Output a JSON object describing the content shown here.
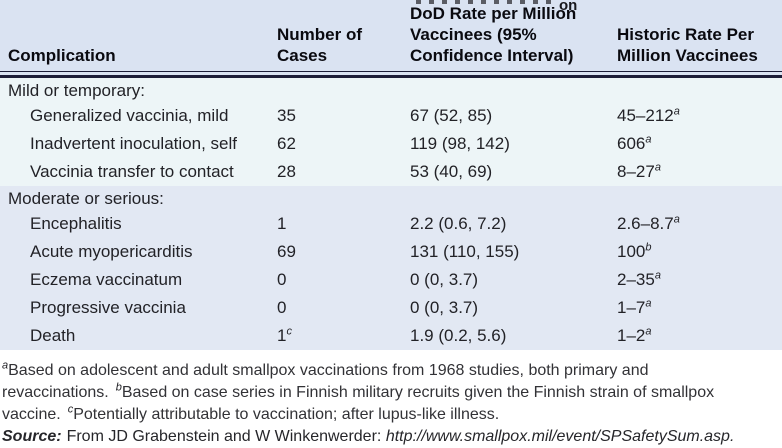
{
  "page": {
    "top_fragment": "on"
  },
  "table": {
    "header": {
      "col1_line1": "Complication",
      "col2_line1": "Number of",
      "col2_line2": "Cases",
      "col3_line1": "DoD Rate per Million",
      "col3_line2": "Vaccinees (95%",
      "col3_line3": "Confidence Interval)",
      "col4_line1": "Historic Rate Per",
      "col4_line2": "Million Vaccinees"
    },
    "sections": [
      {
        "label": "Mild or temporary:",
        "rows": [
          {
            "name": "Generalized vaccinia, mild",
            "cases": "35",
            "cases_sup": "",
            "dod": "67 (52, 85)",
            "historic": "45–212",
            "historic_sup": "a"
          },
          {
            "name": "Inadvertent inoculation, self",
            "cases": "62",
            "cases_sup": "",
            "dod": "119 (98, 142)",
            "historic": "606",
            "historic_sup": "a"
          },
          {
            "name": "Vaccinia transfer to contact",
            "cases": "28",
            "cases_sup": "",
            "dod": "53 (40, 69)",
            "historic": "8–27",
            "historic_sup": "a"
          }
        ]
      },
      {
        "label": "Moderate or serious:",
        "rows": [
          {
            "name": "Encephalitis",
            "cases": "1",
            "cases_sup": "",
            "dod": "2.2 (0.6, 7.2)",
            "historic": "2.6–8.7",
            "historic_sup": "a"
          },
          {
            "name": "Acute myopericarditis",
            "cases": "69",
            "cases_sup": "",
            "dod": "131 (110, 155)",
            "historic": "100",
            "historic_sup": "b"
          },
          {
            "name": "Eczema vaccinatum",
            "cases": "0",
            "cases_sup": "",
            "dod": "0 (0, 3.7)",
            "historic": "2–35",
            "historic_sup": "a"
          },
          {
            "name": "Progressive vaccinia",
            "cases": "0",
            "cases_sup": "",
            "dod": "0 (0, 3.7)",
            "historic": "1–7",
            "historic_sup": "a"
          },
          {
            "name": "Death",
            "cases": "1",
            "cases_sup": "c",
            "dod": "1.9 (0.2, 5.6)",
            "historic": "1–2",
            "historic_sup": "a"
          }
        ]
      }
    ]
  },
  "footnotes": [
    {
      "sup": "a",
      "text": "Based on adolescent and adult smallpox vaccinations from 1968 studies, both primary and revaccinations."
    },
    {
      "sup": "b",
      "text": "Based on case series in Finnish military recruits given the Finnish strain of smallpox vaccine."
    },
    {
      "sup": "c",
      "text": "Potentially attributable to vaccination; after lupus-like illness."
    }
  ],
  "source": {
    "label": "Source:",
    "text": "From JD Grabenstein and W Winkenwerder:",
    "url": "http://www.smallpox.mil/event/SPSafetySum.asp."
  },
  "colors": {
    "header_bg": "#dae3f2",
    "mild_section_bg": "#edf5f7",
    "moderate_section_bg": "#e2e8f3",
    "rule": "#1d1d38"
  }
}
